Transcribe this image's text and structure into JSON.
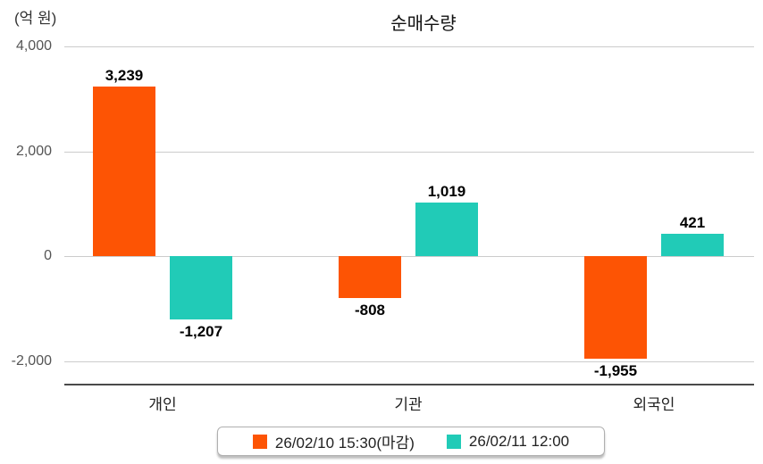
{
  "title": "순매수량",
  "unit_label": "(억 원)",
  "chart_data": {
    "type": "bar",
    "title": "순매수량",
    "ylabel": "(억 원)",
    "categories": [
      "개인",
      "기관",
      "외국인"
    ],
    "series": [
      {
        "name": "26/02/10 15:30(마감)",
        "color": "#FD5404",
        "values": [
          3239,
          -808,
          -1955
        ],
        "labels": [
          "3,239",
          "-808",
          "-1,955"
        ]
      },
      {
        "name": "26/02/11 12:00",
        "color": "#21CBB7",
        "values": [
          -1207,
          1019,
          421
        ],
        "labels": [
          "-1,207",
          "1,019",
          "421"
        ]
      }
    ],
    "yticks": [
      4000,
      2000,
      0,
      -2000
    ],
    "ytick_labels": [
      "4,000",
      "2,000",
      "0",
      "-2,000"
    ],
    "ylim": [
      -2450,
      4000
    ],
    "grid": true,
    "legend_position": "bottom",
    "colors": {
      "gridline": "#cccccc",
      "axis_line": "#4a4a4a",
      "tick_text": "#555555",
      "category_text": "#222222",
      "value_text": "#000000"
    }
  },
  "legend": {
    "items": [
      {
        "label": "26/02/10 15:30(마감)",
        "color": "#FD5404"
      },
      {
        "label": "26/02/11 12:00",
        "color": "#21CBB7"
      }
    ]
  }
}
